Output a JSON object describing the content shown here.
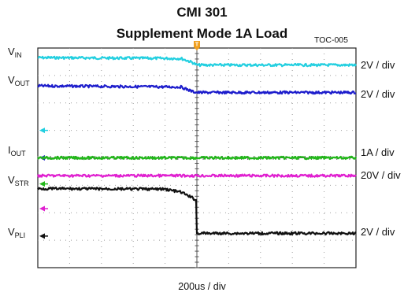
{
  "chart_data": {
    "type": "line",
    "title": "CMI 301",
    "subtitle": "Supplement Mode 1A Load",
    "figure_id": "TOC-005",
    "xlabel": "200us / div",
    "grid": true,
    "trigger_marker": "T",
    "series": [
      {
        "label_main": "V",
        "label_sub": "IN",
        "scale": "2V / div",
        "color": "#22cfe0",
        "x": [
          0,
          4.5,
          4.85,
          5.0,
          10
        ],
        "y": [
          3.65,
          3.62,
          3.48,
          3.38,
          3.38
        ]
      },
      {
        "label_main": "V",
        "label_sub": "OUT",
        "scale": "2V / div",
        "color": "#1d1dcc",
        "x": [
          0,
          4.5,
          4.85,
          5.0,
          10
        ],
        "y": [
          2.62,
          2.58,
          2.42,
          2.38,
          2.38
        ]
      },
      {
        "label_main": "I",
        "label_sub": "OUT",
        "scale": "1A / div",
        "color": "#22b81a",
        "x": [
          0,
          10
        ],
        "y": [
          0.0,
          0.0
        ]
      },
      {
        "label_main": "V",
        "label_sub": "STR",
        "scale": "20V / div",
        "color": "#e020d0",
        "x": [
          0,
          10
        ],
        "y": [
          -0.65,
          -0.65
        ]
      },
      {
        "label_main": "V",
        "label_sub": "PLI",
        "scale": "2V / div",
        "color": "#111111",
        "x": [
          0,
          4.0,
          4.5,
          4.85,
          4.98,
          5.0,
          10
        ],
        "y": [
          -1.12,
          -1.14,
          -1.25,
          -1.45,
          -1.55,
          -2.75,
          -2.75
        ]
      }
    ],
    "ground_markers": [
      {
        "color": "#22cfe0",
        "level": 1.0
      },
      {
        "color": "#1d1dcc",
        "level": 0.0
      },
      {
        "color": "#22b81a",
        "level": -0.95
      },
      {
        "color": "#e020d0",
        "level": -1.85
      },
      {
        "color": "#111111",
        "level": -2.85
      }
    ]
  }
}
